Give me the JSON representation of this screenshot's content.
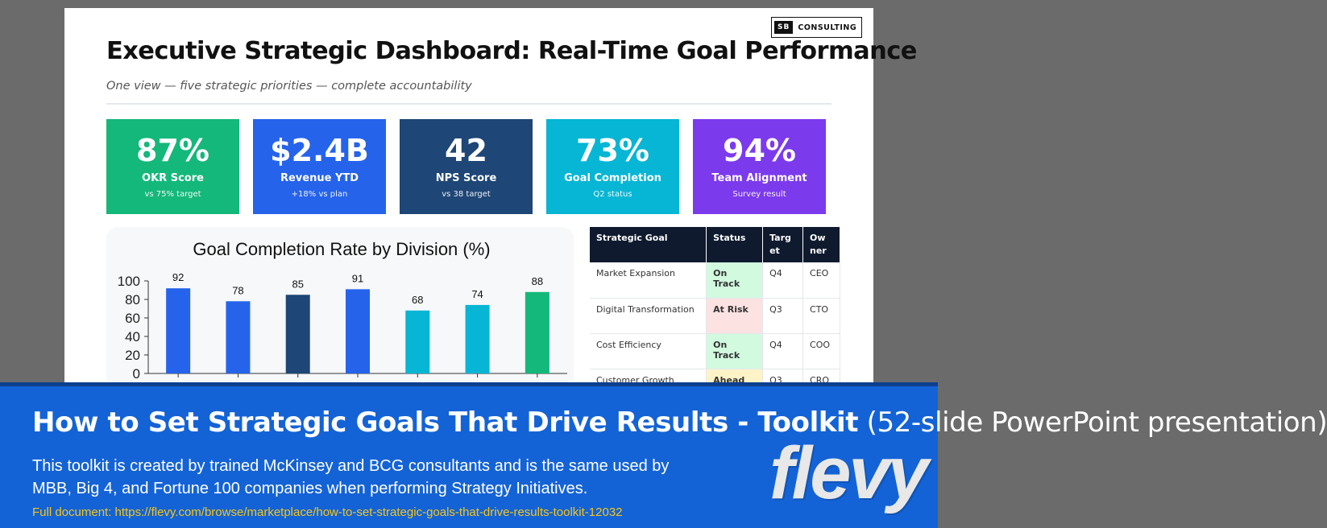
{
  "logo": {
    "mark": "SB",
    "text": "CONSULTING"
  },
  "title": "Executive Strategic Dashboard: Real-Time Goal Performance",
  "subtitle": "One view — five strategic priorities — complete accountability",
  "kpis": [
    {
      "value": "87%",
      "label": "OKR Score",
      "sub": "vs 75% target",
      "color": "#14b87a"
    },
    {
      "value": "$2.4B",
      "label": "Revenue YTD",
      "sub": "+18% vs plan",
      "color": "#2563eb"
    },
    {
      "value": "42",
      "label": "NPS Score",
      "sub": "vs 38 target",
      "color": "#1e4676"
    },
    {
      "value": "73%",
      "label": "Goal Completion",
      "sub": "Q2 status",
      "color": "#06b6d4"
    },
    {
      "value": "94%",
      "label": "Team Alignment",
      "sub": "Survey result",
      "color": "#7c3aed"
    }
  ],
  "chart_data": {
    "type": "bar",
    "title": "Goal Completion Rate by Division (%)",
    "categories": [
      "",
      "",
      "",
      "",
      "",
      "",
      ""
    ],
    "values": [
      92,
      78,
      85,
      91,
      68,
      74,
      88
    ],
    "colors": [
      "#2563eb",
      "#2563eb",
      "#1e4676",
      "#2563eb",
      "#06b6d4",
      "#06b6d4",
      "#14b87a"
    ],
    "yticks": [
      0,
      20,
      40,
      60,
      80,
      100
    ],
    "ylim": [
      0,
      100
    ],
    "xlabel": "",
    "ylabel": "",
    "grid": false
  },
  "table": {
    "headers": [
      "Strategic Goal",
      "Status",
      "Targ et",
      "Ow ner"
    ],
    "rows": [
      {
        "goal": "Market Expansion",
        "status": "On Track",
        "status_type": "on",
        "target": "Q4",
        "owner": "CEO"
      },
      {
        "goal": "Digital Transformation",
        "status": "At Risk",
        "status_type": "risk",
        "target": "Q3",
        "owner": "CTO"
      },
      {
        "goal": "Cost Efficiency",
        "status": "On Track",
        "status_type": "on",
        "target": "Q4",
        "owner": "COO"
      },
      {
        "goal": "Customer Growth",
        "status": "Ahead",
        "status_type": "ahead",
        "target": "Q3",
        "owner": "CRO"
      }
    ]
  },
  "banner": {
    "title_bold": "How to Set Strategic Goals That Drive Results - Toolkit",
    "title_rest": "(52-slide PowerPoint presentation)",
    "description": "This toolkit is created by trained McKinsey and BCG consultants and is the same used by MBB, Big 4, and Fortune 100 companies when performing Strategy Initiatives.",
    "link": "Full document: https://flevy.com/browse/marketplace/how-to-set-strategic-goals-that-drive-results-toolkit-12032",
    "brand": "flevy"
  }
}
